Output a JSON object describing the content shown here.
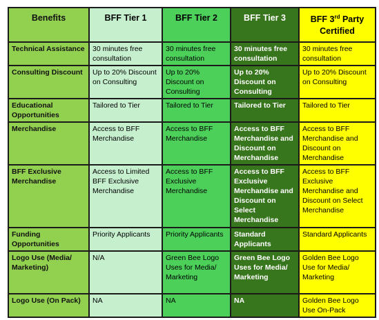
{
  "headers": {
    "benefits": "Benefits",
    "tier1": "BFF Tier 1",
    "tier2": "BFF Tier 2",
    "tier3": "BFF Tier 3",
    "party_prefix": "BFF 3",
    "party_sup": "rd",
    "party_suffix": " Party Certified"
  },
  "rows": [
    {
      "label": "Technical Assistance",
      "tier1": "30 minutes free consultation",
      "tier2": "30 minutes free consultation",
      "tier3": "30 minutes free consultation",
      "party": "30 minutes free consultation"
    },
    {
      "label": "Consulting Discount",
      "tier1": "Up to 20% Discount on Consulting",
      "tier2": "Up to 20% Discount on Consulting",
      "tier3": "Up to 20% Discount on Consulting",
      "party": "Up to 20% Discount on Consulting"
    },
    {
      "label": "Educational Opportunities",
      "tier1": "Tailored to Tier",
      "tier2": "Tailored to Tier",
      "tier3": "Tailored to Tier",
      "party": "Tailored to Tier"
    },
    {
      "label": "Merchandise",
      "tier1": "Access to BFF Merchandise",
      "tier2": "Access to BFF Merchandise",
      "tier3": "Access to BFF Merchandise and Discount on Merchandise",
      "party": "Access to BFF Merchandise and Discount on Merchandise"
    },
    {
      "label": "BFF Exclusive Merchandise",
      "tier1": "Access to Limited BFF Exclusive Merchandise",
      "tier2": "Access to BFF Exclusive Merchandise",
      "tier3": "Access to BFF Exclusive Merchandise and Discount on Select Merchandise",
      "party": "Access to BFF Exclusive Merchandise and Discount on Select Merchandise"
    },
    {
      "label": "Funding Opportunities",
      "tier1": "Priority Applicants",
      "tier2": "Priority Applicants",
      "tier3": "Standard Applicants",
      "party": "Standard Applicants"
    },
    {
      "label": "Logo Use (Media/ Marketing)",
      "tier1": "N/A",
      "tier2": "Green Bee Logo Uses for Media/ Marketing",
      "tier3": "Green Bee Logo Uses for Media/ Marketing",
      "party": "Golden Bee Logo Use for Media/ Marketing"
    },
    {
      "label": "Logo Use (On Pack)",
      "tier1": "NA",
      "tier2": "NA",
      "tier3": "NA",
      "party": "Golden Bee Logo Use On-Pack"
    }
  ]
}
